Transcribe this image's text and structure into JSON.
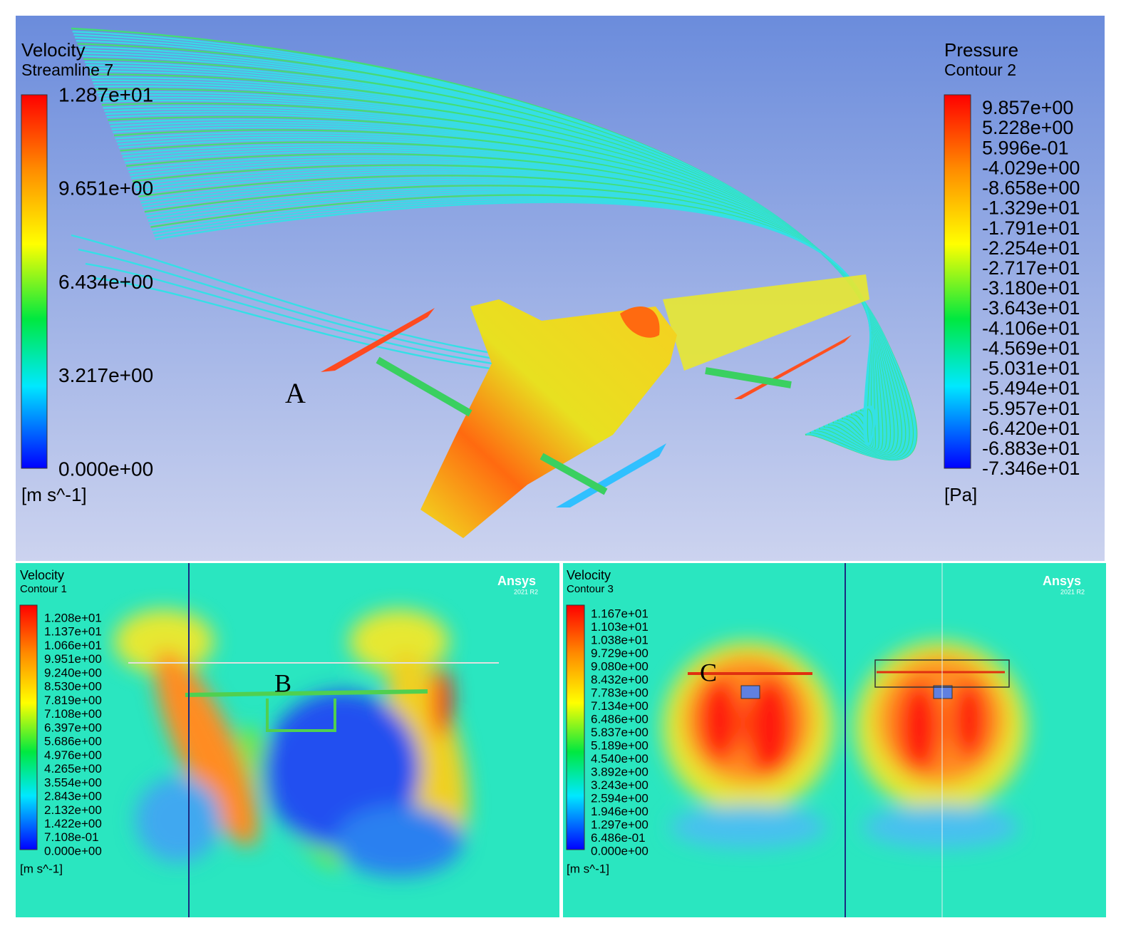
{
  "panels": [
    {
      "letter": "A",
      "legends": [
        {
          "title": "Velocity",
          "subtitle": "Streamline 7",
          "labels": [
            "1.287e+01",
            "9.651e+00",
            "6.434e+00",
            "3.217e+00",
            "0.000e+00"
          ],
          "unit": "[m s^-1]"
        },
        {
          "title": "Pressure",
          "subtitle": "Contour 2",
          "labels": [
            "9.857e+00",
            "5.228e+00",
            "5.996e-01",
            "-4.029e+00",
            "-8.658e+00",
            "-1.329e+01",
            "-1.791e+01",
            "-2.254e+01",
            "-2.717e+01",
            "-3.180e+01",
            "-3.643e+01",
            "-4.106e+01",
            "-4.569e+01",
            "-5.031e+01",
            "-5.494e+01",
            "-5.957e+01",
            "-6.420e+01",
            "-6.883e+01",
            "-7.346e+01"
          ],
          "unit": "[Pa]"
        }
      ]
    },
    {
      "letter": "B",
      "brand": "Ansys",
      "version": "2021 R2",
      "legends": [
        {
          "title": "Velocity",
          "subtitle": "Contour 1",
          "labels": [
            "1.208e+01",
            "1.137e+01",
            "1.066e+01",
            "9.951e+00",
            "9.240e+00",
            "8.530e+00",
            "7.819e+00",
            "7.108e+00",
            "6.397e+00",
            "5.686e+00",
            "4.976e+00",
            "4.265e+00",
            "3.554e+00",
            "2.843e+00",
            "2.132e+00",
            "1.422e+00",
            "7.108e-01",
            "0.000e+00"
          ],
          "unit": "[m s^-1]"
        }
      ]
    },
    {
      "letter": "C",
      "brand": "Ansys",
      "version": "2021 R2",
      "legends": [
        {
          "title": "Velocity",
          "subtitle": "Contour 3",
          "labels": [
            "1.167e+01",
            "1.103e+01",
            "1.038e+01",
            "9.729e+00",
            "9.080e+00",
            "8.432e+00",
            "7.783e+00",
            "7.134e+00",
            "6.486e+00",
            "5.837e+00",
            "5.189e+00",
            "4.540e+00",
            "3.892e+00",
            "3.243e+00",
            "2.594e+00",
            "1.946e+00",
            "1.297e+00",
            "6.486e-01",
            "0.000e+00"
          ],
          "unit": "[m s^-1]"
        }
      ]
    }
  ]
}
